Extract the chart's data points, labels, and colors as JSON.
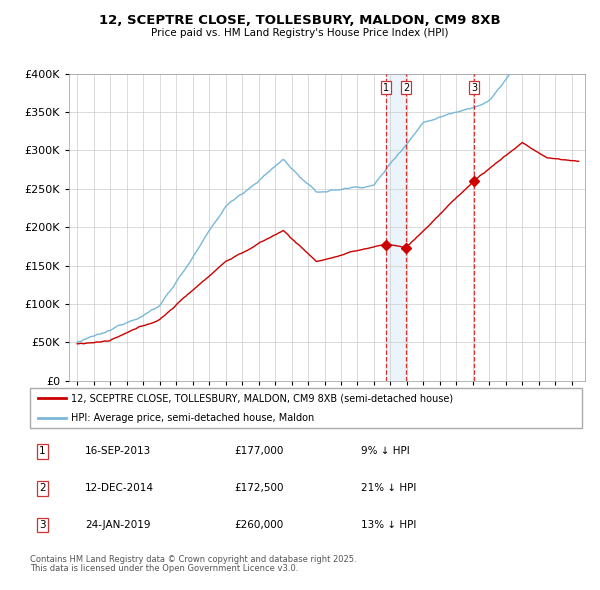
{
  "title": "12, SCEPTRE CLOSE, TOLLESBURY, MALDON, CM9 8XB",
  "subtitle": "Price paid vs. HM Land Registry's House Price Index (HPI)",
  "legend_property": "12, SCEPTRE CLOSE, TOLLESBURY, MALDON, CM9 8XB (semi-detached house)",
  "legend_hpi": "HPI: Average price, semi-detached house, Maldon",
  "footer1": "Contains HM Land Registry data © Crown copyright and database right 2025.",
  "footer2": "This data is licensed under the Open Government Licence v3.0.",
  "transactions": [
    {
      "num": 1,
      "date": "16-SEP-2013",
      "price": "£177,000",
      "pct": "9% ↓ HPI"
    },
    {
      "num": 2,
      "date": "12-DEC-2014",
      "price": "£172,500",
      "pct": "21% ↓ HPI"
    },
    {
      "num": 3,
      "date": "24-JAN-2019",
      "price": "£260,000",
      "pct": "13% ↓ HPI"
    }
  ],
  "vline_dates": [
    2013.72,
    2014.95,
    2019.07
  ],
  "marker_dates": [
    2013.72,
    2014.95,
    2019.07
  ],
  "marker_values_red": [
    177000,
    172500,
    260000
  ],
  "ylim": [
    0,
    400000
  ],
  "xlim_start": 1994.5,
  "xlim_end": 2025.8,
  "red_color": "#cc0000",
  "blue_color": "#7ab8d9",
  "blue_fill": "#ddeef7",
  "background_color": "#ffffff",
  "grid_color": "#cccccc",
  "vline_color": "#cc0000",
  "shade_color": "#ddeef7"
}
